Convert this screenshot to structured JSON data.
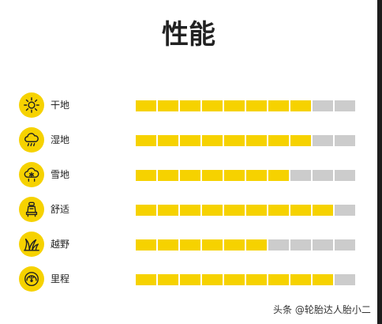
{
  "title": "性能",
  "colors": {
    "filled": "#f6d200",
    "empty": "#cccccc",
    "icon_bg": "#f6d200"
  },
  "total_segments": 10,
  "rows": [
    {
      "label": "干地",
      "icon": "sun-icon",
      "level": 8
    },
    {
      "label": "湿地",
      "icon": "rain-cloud-icon",
      "level": 8
    },
    {
      "label": "雪地",
      "icon": "snow-cloud-icon",
      "level": 7
    },
    {
      "label": "舒适",
      "icon": "car-seat-icon",
      "level": 9
    },
    {
      "label": "越野",
      "icon": "grass-icon",
      "level": 6
    },
    {
      "label": "里程",
      "icon": "odometer-icon",
      "level": 9
    }
  ],
  "watermark": "头条 @轮胎达人胎小二"
}
